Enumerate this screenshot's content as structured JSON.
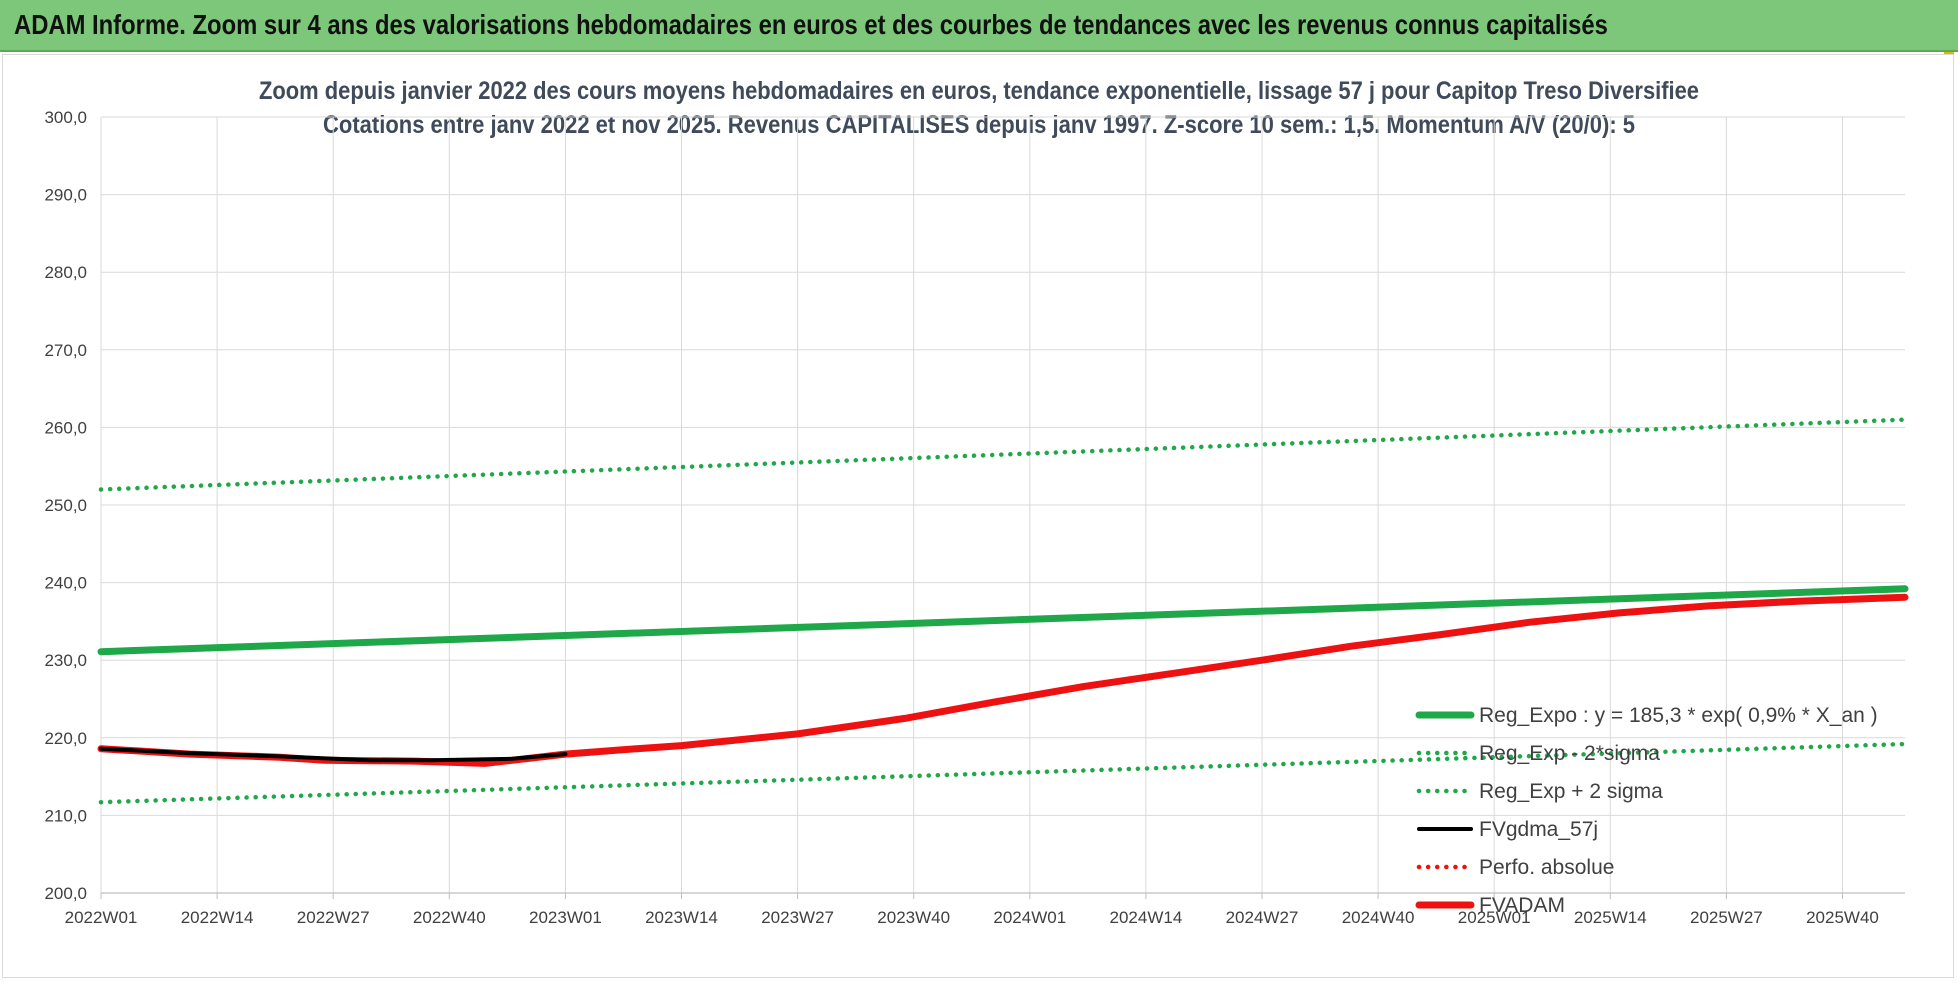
{
  "header": {
    "title": "ADAM Informe. Zoom sur 4 ans des valorisations hebdomadaires en euros et des courbes de tendances avec les revenus connus capitalisés"
  },
  "colors": {
    "banner": "#7dc77a",
    "reg_expo": "#1fa84a",
    "fvadam": "#ee1111",
    "fvgdma": "#000000",
    "perfo": "#ee1111",
    "grid": "#d9d9d9"
  },
  "chart_data": {
    "type": "line",
    "title_lines": [
      "Zoom depuis janvier 2022 des cours moyens hebdomadaires en euros, tendance exponentielle, lissage 57 j pour Capitop Treso Diversifiee",
      "Cotations entre janv 2022 et nov 2025. Revenus CAPITALISES depuis janv 1997. Z-score 10 sem.: 1,5. Momentum A/V (20/0): 5"
    ],
    "ylim": [
      200,
      300
    ],
    "y_ticks": [
      "200,0",
      "210,0",
      "220,0",
      "230,0",
      "240,0",
      "250,0",
      "260,0",
      "270,0",
      "280,0",
      "290,0",
      "300,0"
    ],
    "x_range_weeks": [
      0,
      202
    ],
    "x_tick_labels": [
      "2022W01",
      "2022W14",
      "2022W27",
      "2022W40",
      "2023W01",
      "2023W14",
      "2023W27",
      "2023W40",
      "2024W01",
      "2024W14",
      "2024W27",
      "2024W40",
      "2025W01",
      "2025W14",
      "2025W27",
      "2025W40"
    ],
    "legend_position": "right",
    "grid": true,
    "series": [
      {
        "name": "Reg_Expo : y = 185,3 * exp( 0,9% *  X_an )",
        "style": "solid-thick",
        "color": "#1fa84a",
        "points": [
          [
            0,
            231.1
          ],
          [
            202,
            239.2
          ]
        ]
      },
      {
        "name": "Reg_Exp - 2*sigma",
        "style": "dotted",
        "color": "#1fa84a",
        "points": [
          [
            0,
            211.7
          ],
          [
            202,
            219.2
          ]
        ]
      },
      {
        "name": "Reg_Exp + 2 sigma",
        "style": "dotted",
        "color": "#1fa84a",
        "points": [
          [
            0,
            252.0
          ],
          [
            202,
            261.0
          ]
        ]
      },
      {
        "name": "FVgdma_57j",
        "style": "solid",
        "color": "#000000",
        "points": [
          [
            0,
            218.6
          ],
          [
            10,
            218.0
          ],
          [
            20,
            217.6
          ],
          [
            30,
            217.1
          ],
          [
            37,
            217.1
          ],
          [
            46,
            217.3
          ],
          [
            52,
            217.9
          ]
        ]
      },
      {
        "name": "Perfo. absolue",
        "style": "dotted",
        "color": "#ee1111",
        "points": []
      },
      {
        "name": "FVADAM",
        "style": "solid-thick",
        "color": "#ee1111",
        "points": [
          [
            0,
            218.6
          ],
          [
            10,
            217.9
          ],
          [
            20,
            217.5
          ],
          [
            25,
            217.1
          ],
          [
            35,
            217.0
          ],
          [
            43,
            216.7
          ],
          [
            52,
            217.9
          ],
          [
            60,
            218.6
          ],
          [
            65,
            219.0
          ],
          [
            78,
            220.5
          ],
          [
            90,
            222.5
          ],
          [
            100,
            224.6
          ],
          [
            110,
            226.6
          ],
          [
            120,
            228.3
          ],
          [
            130,
            230.0
          ],
          [
            140,
            231.8
          ],
          [
            150,
            233.3
          ],
          [
            160,
            234.9
          ],
          [
            170,
            236.1
          ],
          [
            180,
            237.0
          ],
          [
            190,
            237.6
          ],
          [
            202,
            238.1
          ]
        ]
      }
    ]
  }
}
